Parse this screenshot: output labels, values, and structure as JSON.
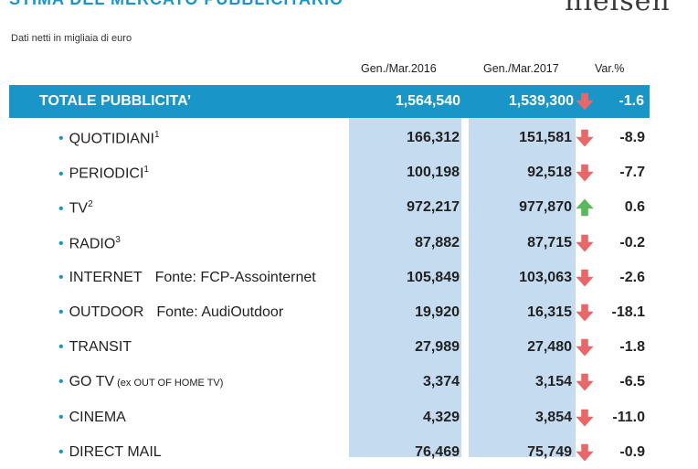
{
  "header": {
    "title": "STIMA DEL MERCATO PUBBLICITARIO",
    "logo": "nielsen",
    "subtitle": "Dati netti in migliaia di euro"
  },
  "columns": {
    "period_2016": "Gen./Mar.2016",
    "period_2017": "Gen./Mar.2017",
    "variation": "Var.%"
  },
  "total": {
    "label": "TOTALE PUBBLICITA’",
    "value_2016": "1,564,540",
    "value_2017": "1,539,300",
    "trend": "down",
    "var": "-1.6"
  },
  "rows": [
    {
      "label": "QUOTIDIANI",
      "note": "1",
      "source": "",
      "extra": "",
      "value_2016": "166,312",
      "value_2017": "151,581",
      "trend": "down",
      "var": "-8.9"
    },
    {
      "label": "PERIODICI",
      "note": "1",
      "source": "",
      "extra": "",
      "value_2016": "100,198",
      "value_2017": "92,518",
      "trend": "down",
      "var": "-7.7"
    },
    {
      "label": "TV",
      "note": "2",
      "source": "",
      "extra": "",
      "value_2016": "972,217",
      "value_2017": "977,870",
      "trend": "up",
      "var": "0.6"
    },
    {
      "label": "RADIO",
      "note": "3",
      "source": "",
      "extra": "",
      "value_2016": "87,882",
      "value_2017": "87,715",
      "trend": "down",
      "var": "-0.2"
    },
    {
      "label": "INTERNET",
      "note": "",
      "source": "Fonte: FCP-Assointernet",
      "extra": "",
      "value_2016": "105,849",
      "value_2017": "103,063",
      "trend": "down",
      "var": "-2.6"
    },
    {
      "label": "OUTDOOR",
      "note": "",
      "source": "Fonte: AudiOutdoor",
      "extra": "",
      "value_2016": "19,920",
      "value_2017": "16,315",
      "trend": "down",
      "var": "-18.1"
    },
    {
      "label": "TRANSIT",
      "note": "",
      "source": "",
      "extra": "",
      "value_2016": "27,989",
      "value_2017": "27,480",
      "trend": "down",
      "var": "-1.8"
    },
    {
      "label": "GO TV",
      "note": "",
      "source": "",
      "extra": "(ex OUT OF HOME TV)",
      "value_2016": "3,374",
      "value_2017": "3,154",
      "trend": "down",
      "var": "-6.5"
    },
    {
      "label": "CINEMA",
      "note": "",
      "source": "",
      "extra": "",
      "value_2016": "4,329",
      "value_2017": "3,854",
      "trend": "down",
      "var": "-11.0"
    },
    {
      "label": "DIRECT MAIL",
      "note": "",
      "source": "",
      "extra": "",
      "value_2016": "76,469",
      "value_2017": "75,749",
      "trend": "down",
      "var": "-0.9"
    }
  ],
  "colors": {
    "accent": "#1a95c7",
    "column_bg": "#c5dbf0",
    "arrow_down": "#e8686a",
    "arrow_up": "#5cb85c"
  },
  "icons": {
    "down": "arrow-down-icon",
    "up": "arrow-up-icon"
  }
}
